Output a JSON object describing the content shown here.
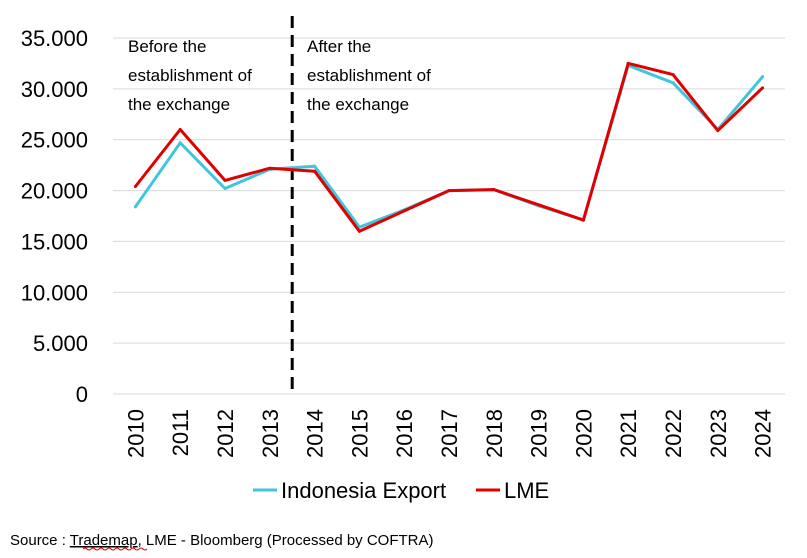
{
  "chart_data": {
    "type": "line",
    "categories": [
      "2010",
      "2011",
      "2012",
      "2013",
      "2014",
      "2015",
      "2016",
      "2017",
      "2018",
      "2019",
      "2020",
      "2021",
      "2022",
      "2023",
      "2024"
    ],
    "series": [
      {
        "name": "Indonesia Export",
        "color": "#3fc6dc",
        "values": [
          18400,
          24700,
          20200,
          22100,
          22400,
          16400,
          18100,
          20000,
          20100,
          18500,
          17100,
          32300,
          30600,
          26000,
          31200
        ]
      },
      {
        "name": "LME",
        "color": "#e00000",
        "values": [
          20400,
          26000,
          21000,
          22200,
          21900,
          16000,
          18000,
          20000,
          20100,
          18600,
          17100,
          32500,
          31400,
          25900,
          30100
        ]
      }
    ],
    "ylim": [
      0,
      35000
    ],
    "yticks": [
      0,
      5000,
      10000,
      15000,
      20000,
      25000,
      30000,
      35000
    ],
    "ytick_labels": [
      "0",
      "5.000",
      "10.000",
      "15.000",
      "20.000",
      "25.000",
      "30.000",
      "35.000"
    ],
    "grid": true,
    "legend_position": "bottom",
    "divider_after_category": "2013",
    "annotations": {
      "left": [
        "Before the",
        "establishment of",
        "the exchange"
      ],
      "right": [
        "After the",
        "establishment of",
        "the exchange"
      ]
    }
  },
  "source": {
    "prefix": "Source : ",
    "underlined": "Trademap",
    "rest": ", LME - Bloomberg (Processed by COFTRA)"
  }
}
